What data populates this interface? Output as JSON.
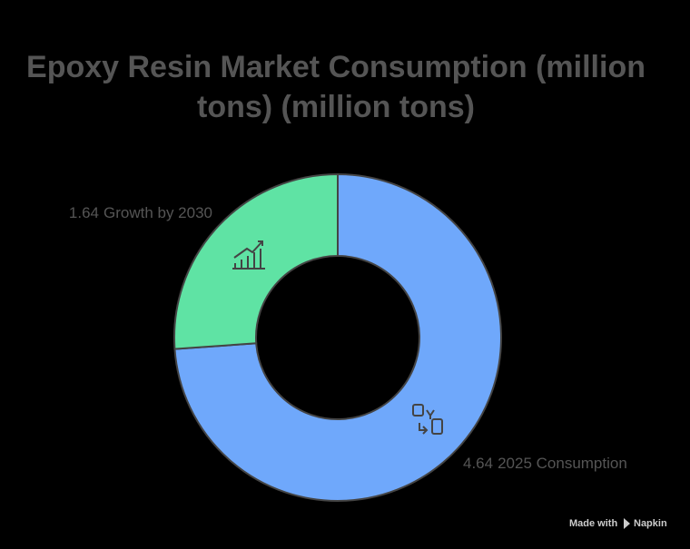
{
  "chart_data": {
    "type": "donut",
    "title": "Epoxy Resin Market Consumption (million tons) (million tons)",
    "categories": [
      "2025 Consumption",
      "Growth by 2030"
    ],
    "values": [
      4.64,
      1.64
    ],
    "colors": [
      "#6fa8fb",
      "#5fe3a4"
    ]
  },
  "credit": {
    "prefix": "Made with",
    "brand": "Napkin"
  }
}
